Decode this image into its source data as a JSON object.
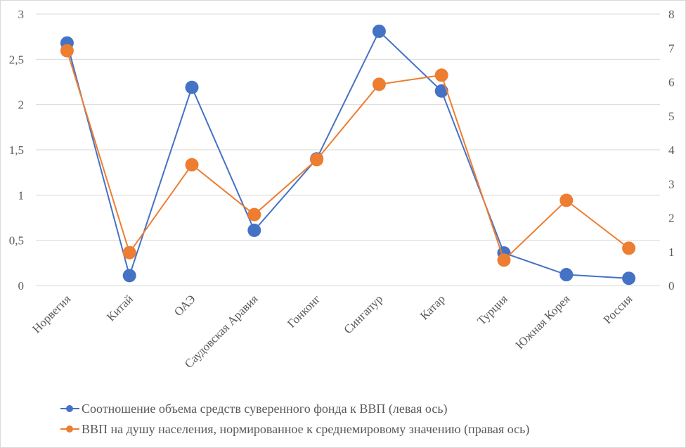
{
  "chart_data": {
    "type": "line",
    "categories": [
      "Норвегия",
      "Китай",
      "ОАЭ",
      "Саудовская Аравия",
      "Гонконг",
      "Сингапур",
      "Катар",
      "Турция",
      "Южная Корея",
      "Россия"
    ],
    "y_left": {
      "range": [
        0,
        3
      ],
      "ticks": [
        "0",
        "0,5",
        "1",
        "1,5",
        "2",
        "2,5",
        "3"
      ],
      "tick_values": [
        0,
        0.5,
        1,
        1.5,
        2,
        2.5,
        3
      ]
    },
    "y_right": {
      "range": [
        0,
        8
      ],
      "ticks": [
        "0",
        "1",
        "2",
        "3",
        "4",
        "5",
        "6",
        "7",
        "8"
      ],
      "tick_values": [
        0,
        1,
        2,
        3,
        4,
        5,
        6,
        7,
        8
      ]
    },
    "grid": true,
    "legend_position": "bottom",
    "series": [
      {
        "name": "Соотношение объема средств суверенного фонда к ВВП (левая ось)",
        "axis": "left",
        "color": "#4472C4",
        "values": [
          2.68,
          0.11,
          2.19,
          0.61,
          1.4,
          2.81,
          2.15,
          0.36,
          0.12,
          0.08
        ]
      },
      {
        "name": "ВВП на душу населения, нормированное к среднемировому значению (правая ось)",
        "axis": "right",
        "color": "#ED7D31",
        "values": [
          6.92,
          0.97,
          3.56,
          2.09,
          3.71,
          5.93,
          6.2,
          0.75,
          2.51,
          1.1
        ]
      }
    ]
  }
}
